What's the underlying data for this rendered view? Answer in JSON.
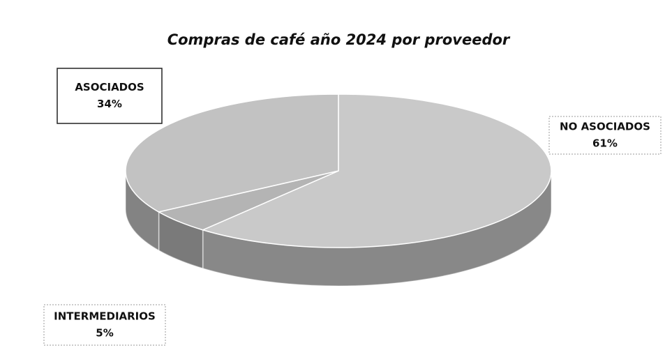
{
  "chart_data": {
    "type": "pie",
    "title": "Compras de café año 2024 por proveedor",
    "categories": [
      "NO ASOCIADOS",
      "INTERMEDIARIOS",
      "ASOCIADOS"
    ],
    "values": [
      61,
      5,
      34
    ],
    "value_labels": [
      "61%",
      "5%",
      "34%"
    ],
    "colors": [
      "#c9c9c9",
      "#b4b4b4",
      "#c2c2c2"
    ]
  }
}
